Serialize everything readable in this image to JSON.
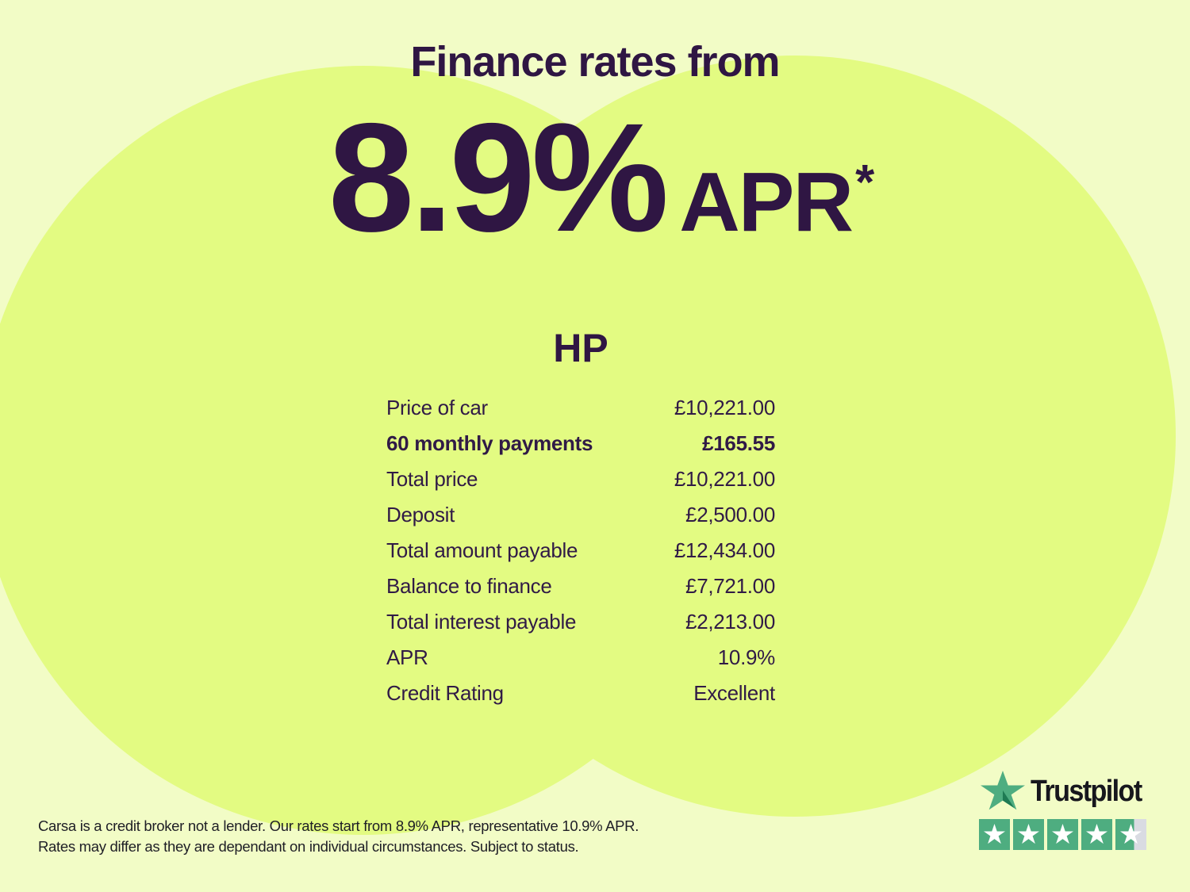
{
  "page": {
    "background_color": "#F2FCC6",
    "circle_color": "#E3FB82",
    "text_color": "#2F1643"
  },
  "header": {
    "title": "Finance rates from",
    "rate": "8.9%",
    "rate_suffix": "APR",
    "rate_footnote_marker": "*"
  },
  "finance_table": {
    "heading": "HP",
    "rows": [
      {
        "label": "Price of car",
        "value": "£10,221.00",
        "bold": false
      },
      {
        "label": "60 monthly payments",
        "value": "£165.55",
        "bold": true
      },
      {
        "label": "Total price",
        "value": "£10,221.00",
        "bold": false
      },
      {
        "label": "Deposit",
        "value": "£2,500.00",
        "bold": false
      },
      {
        "label": "Total amount payable",
        "value": "£12,434.00",
        "bold": false
      },
      {
        "label": "Balance to finance",
        "value": "£7,721.00",
        "bold": false
      },
      {
        "label": "Total interest payable",
        "value": "£2,213.00",
        "bold": false
      },
      {
        "label": "APR",
        "value": "10.9%",
        "bold": false
      },
      {
        "label": "Credit Rating",
        "value": "Excellent",
        "bold": false
      }
    ]
  },
  "trustpilot": {
    "brand": "Trustpilot",
    "stars_total": 5,
    "stars_filled": 4.6,
    "star_color": "#4EAD80",
    "star_notch_color": "#1E7A53",
    "star_empty_color": "#D9DBE2",
    "wordmark_color": "#17171D"
  },
  "footer": {
    "line1": "Carsa is a credit broker not a lender. Our rates start from 8.9% APR, representative 10.9% APR.",
    "line2": "Rates may differ as they are dependant on individual circumstances. Subject to status."
  }
}
